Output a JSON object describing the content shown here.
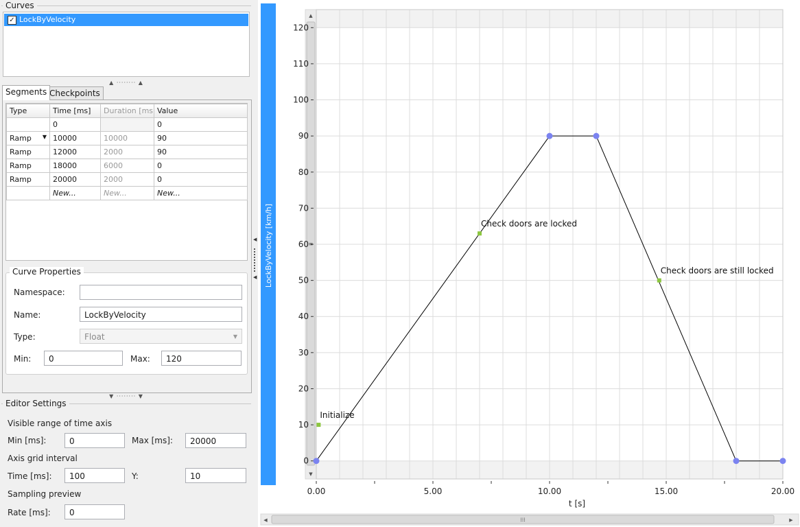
{
  "curves_panel": {
    "title": "Curves",
    "items": [
      {
        "label": "LockByVelocity",
        "checked": true
      }
    ]
  },
  "tabs": [
    {
      "label": "Segments",
      "active": true
    },
    {
      "label": "Checkpoints",
      "active": false
    }
  ],
  "segments_table": {
    "headers": [
      "Type",
      "Time [ms]",
      "Duration [ms]",
      "Value"
    ],
    "rows": [
      [
        "",
        "0",
        "",
        "0"
      ],
      [
        "Ramp",
        "10000",
        "10000",
        "90"
      ],
      [
        "Ramp",
        "12000",
        "2000",
        "90"
      ],
      [
        "Ramp",
        "18000",
        "6000",
        "0"
      ],
      [
        "Ramp",
        "20000",
        "2000",
        "0"
      ],
      [
        "",
        "New...",
        "New...",
        "New..."
      ]
    ]
  },
  "curve_properties": {
    "title": "Curve Properties",
    "namespace_label": "Namespace:",
    "namespace_value": "",
    "name_label": "Name:",
    "name_value": "LockByVelocity",
    "type_label": "Type:",
    "type_value": "Float",
    "min_label": "Min:",
    "min_value": "0",
    "max_label": "Max:",
    "max_value": "120"
  },
  "editor_settings": {
    "title": "Editor Settings",
    "visible_range_heading": "Visible range of time axis",
    "min_label": "Min [ms]:",
    "min_value": "0",
    "max_label": "Max [ms]:",
    "max_value": "20000",
    "grid_heading": "Axis grid interval",
    "time_label": "Time [ms]:",
    "time_value": "100",
    "y_label": "Y:",
    "y_value": "10",
    "sampling_heading": "Sampling preview",
    "rate_label": "Rate [ms]:",
    "rate_value": "0"
  },
  "colors": {
    "curve_bar": "#3399ff",
    "selection": "#3399ff",
    "keyframe": "#7b83f0",
    "checkpoint": "#8cc63f",
    "line": "#000000",
    "grid": "#dcdcdc"
  },
  "chart_data": {
    "type": "line",
    "ylabel": "LockByVelocity [km/h]",
    "xlabel": "t [s]",
    "xlim": [
      0,
      20
    ],
    "ylim": [
      -5,
      125
    ],
    "y_ticks": [
      0,
      10,
      20,
      30,
      40,
      50,
      60,
      70,
      80,
      90,
      100,
      110,
      120
    ],
    "x_ticks": [
      0,
      5,
      10,
      15,
      20
    ],
    "x_tick_labels": [
      "0.00",
      "5.00",
      "10.00",
      "15.00",
      "20.00"
    ],
    "series": [
      {
        "name": "LockByVelocity",
        "x": [
          0,
          10,
          12,
          18,
          20
        ],
        "y": [
          0,
          90,
          90,
          0,
          0
        ]
      }
    ],
    "checkpoints": [
      {
        "label": "Initialize",
        "x": 0.1,
        "y": 10
      },
      {
        "label": "Check doors are locked",
        "x": 7.0,
        "y": 63
      },
      {
        "label": "Check doors are still locked",
        "x": 14.7,
        "y": 50
      }
    ]
  }
}
